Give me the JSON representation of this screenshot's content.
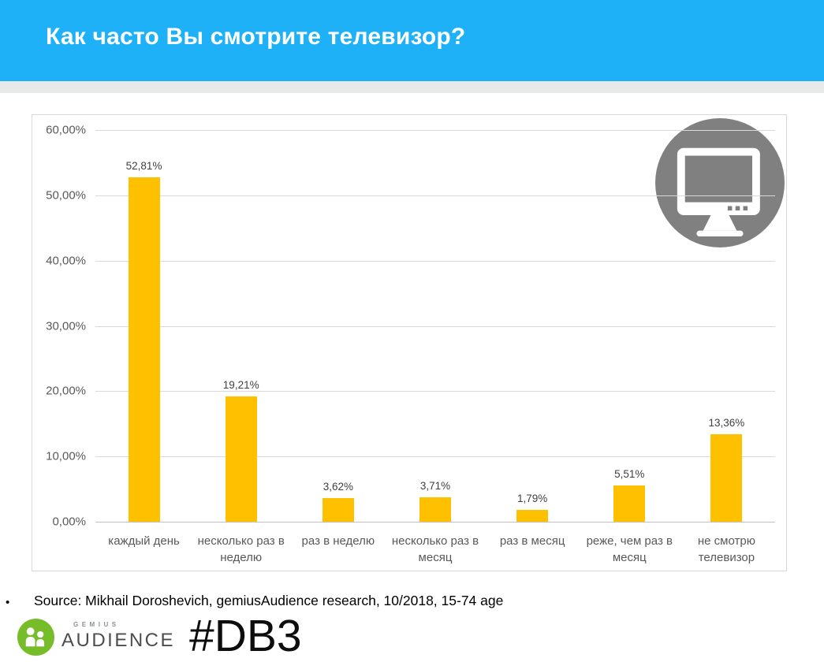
{
  "header": {
    "title": "Как часто Вы смотрите телевизор?",
    "bg_color": "#1fb1f7",
    "strip_color": "#e8e9e9"
  },
  "chart_data": {
    "type": "bar",
    "title": "Как часто Вы смотрите телевизор?",
    "categories": [
      "каждый день",
      "несколько раз в неделю",
      "раз в неделю",
      "несколько раз в месяц",
      "раз в месяц",
      "реже, чем раз в месяц",
      "не смотрю телевизор"
    ],
    "values": [
      52.81,
      19.21,
      3.62,
      3.71,
      1.79,
      5.51,
      13.36
    ],
    "data_labels": [
      "52,81%",
      "19,21%",
      "3,62%",
      "3,71%",
      "1,79%",
      "5,51%",
      "13,36%"
    ],
    "y_ticks": [
      "60,00%",
      "50,00%",
      "40,00%",
      "30,00%",
      "20,00%",
      "10,00%",
      "0,00%"
    ],
    "ylim": [
      0,
      60
    ],
    "xlabel": "",
    "ylabel": "",
    "grid": true,
    "legend": false,
    "bar_color": "#ffc000",
    "grid_color": "#d9d9d9",
    "tick_color": "#595959",
    "value_label_color": "#404040"
  },
  "icons": {
    "tv_badge": "tv-monitor-icon",
    "tv_badge_color": "#808080",
    "logo_people": "people-icon",
    "logo_green": "#77bc29"
  },
  "footer": {
    "bullet": "•",
    "source": "Source: Mikhail Doroshevich, gemiusAudience research,  10/2018, 15-74 age",
    "hashtag": "#DB3",
    "logo_top": "GEMIUS",
    "logo_bottom": "AUDIENCE"
  }
}
